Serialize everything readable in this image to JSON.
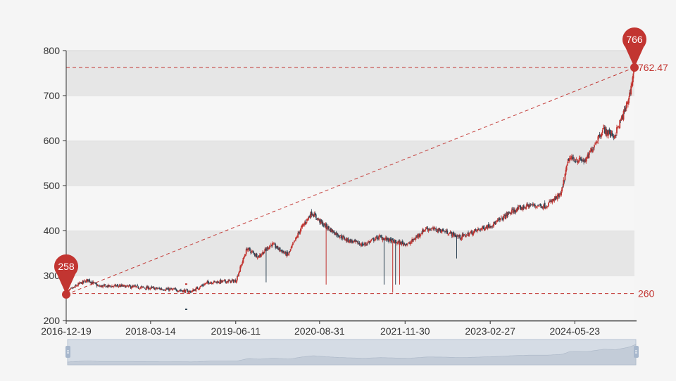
{
  "chart_data": {
    "type": "candlestick",
    "title": "",
    "xlabel": "",
    "ylabel": "",
    "ylim": [
      200,
      800
    ],
    "y_ticks": [
      "200",
      "300",
      "400",
      "500",
      "600",
      "700",
      "800"
    ],
    "x_ticks": [
      "2016-12-19",
      "2018-03-14",
      "2019-06-11",
      "2020-08-31",
      "2021-11-30",
      "2023-02-27",
      "2024-05-23"
    ],
    "x_range": [
      "2016-12-19",
      "2025-04-06"
    ],
    "grid": "split-area bands",
    "colors": {
      "up": "#c23531",
      "down": "#314656",
      "mark": "#c23531",
      "band_light": "#f6f6f6",
      "band_dark": "#e6e6e6"
    },
    "close_path": [
      [
        "2016-12-19",
        262
      ],
      [
        "2017-03-01",
        282
      ],
      [
        "2017-04-15",
        290
      ],
      [
        "2017-06-10",
        276
      ],
      [
        "2017-10-01",
        277
      ],
      [
        "2018-03-14",
        272
      ],
      [
        "2018-08-01",
        268
      ],
      [
        "2018-10-15",
        264
      ],
      [
        "2019-01-15",
        285
      ],
      [
        "2019-06-11",
        288
      ],
      [
        "2019-08-10",
        360
      ],
      [
        "2019-10-10",
        342
      ],
      [
        "2019-12-20",
        370
      ],
      [
        "2020-03-15",
        345
      ],
      [
        "2020-05-20",
        402
      ],
      [
        "2020-07-20",
        440
      ],
      [
        "2020-09-15",
        415
      ],
      [
        "2020-11-20",
        395
      ],
      [
        "2021-01-20",
        380
      ],
      [
        "2021-04-20",
        368
      ],
      [
        "2021-07-15",
        386
      ],
      [
        "2021-10-10",
        374
      ],
      [
        "2021-12-20",
        370
      ],
      [
        "2022-03-20",
        405
      ],
      [
        "2022-06-20",
        400
      ],
      [
        "2022-09-20",
        385
      ],
      [
        "2023-01-15",
        405
      ],
      [
        "2023-03-20",
        415
      ],
      [
        "2023-06-20",
        442
      ],
      [
        "2023-09-20",
        456
      ],
      [
        "2023-12-20",
        455
      ],
      [
        "2024-03-10",
        480
      ],
      [
        "2024-04-20",
        560
      ],
      [
        "2024-07-20",
        555
      ],
      [
        "2024-09-15",
        600
      ],
      [
        "2024-10-20",
        625
      ],
      [
        "2024-12-20",
        610
      ],
      [
        "2025-02-10",
        662
      ],
      [
        "2025-03-10",
        700
      ],
      [
        "2025-04-06",
        762
      ]
    ],
    "low_spikes": [
      [
        "2019-11-20",
        285
      ],
      [
        "2020-10-05",
        280
      ],
      [
        "2021-08-10",
        280
      ],
      [
        "2021-09-25",
        262
      ],
      [
        "2021-10-10",
        280
      ],
      [
        "2021-11-01",
        280
      ],
      [
        "2022-09-01",
        338
      ]
    ],
    "outliers": [
      [
        "2018-09-20",
        225
      ],
      [
        "2018-09-20",
        281
      ]
    ],
    "mark_points": [
      {
        "name": "max",
        "label": "766",
        "date": "2025-04-06",
        "value": 766
      },
      {
        "name": "min",
        "label": "258",
        "date": "2016-12-19",
        "value": 258
      }
    ],
    "mark_lines": [
      {
        "label": "762.47",
        "value": 762.47
      },
      {
        "label": "260",
        "value": 260
      }
    ],
    "trend_line": {
      "from": [
        "2016-12-19",
        258
      ],
      "to": [
        "2025-04-06",
        762.47
      ]
    }
  }
}
